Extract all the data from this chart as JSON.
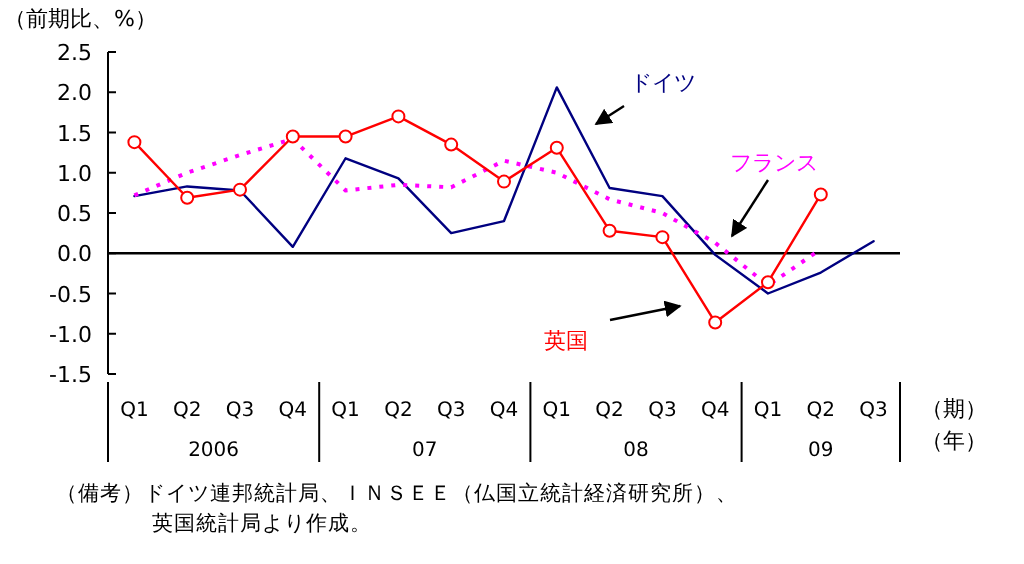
{
  "chart_data": {
    "type": "line",
    "ylabel": "（前期比、%）",
    "xlabel": "（期）（年）",
    "categories": [
      "Q1",
      "Q2",
      "Q3",
      "Q4",
      "Q1",
      "Q2",
      "Q3",
      "Q4",
      "Q1",
      "Q2",
      "Q3",
      "Q4",
      "Q1",
      "Q2",
      "Q3"
    ],
    "ylim": [
      -1.5,
      2.5
    ],
    "yticks": [
      {
        "value": 2.5,
        "label": "2.5"
      },
      {
        "value": 2.0,
        "label": "2.0"
      },
      {
        "value": 1.5,
        "label": "1.5"
      },
      {
        "value": 1.0,
        "label": "1.0"
      },
      {
        "value": 0.5,
        "label": "0.5"
      },
      {
        "value": 0,
        "label": "0.0"
      },
      {
        "value": -0.5,
        "label": "-0.5"
      },
      {
        "value": -1.0,
        "label": "-1.0"
      },
      {
        "value": -1.5,
        "label": "-1.5"
      }
    ],
    "ref_lines": [
      {
        "axis": "y",
        "value": 0,
        "color": "#000000"
      }
    ],
    "grid": false,
    "legend": false,
    "series": [
      {
        "name": "ドイツ",
        "color": "#000080",
        "marker": "none",
        "line_style": "solid",
        "values": [
          0.71,
          0.83,
          0.78,
          0.08,
          1.18,
          0.93,
          0.25,
          0.4,
          2.06,
          0.81,
          0.71,
          -0.02,
          -0.5,
          -0.24,
          0.15
        ]
      },
      {
        "name": "フランス",
        "color": "#ff00ff",
        "marker": "none",
        "line_style": "dotted",
        "values": [
          0.72,
          1.0,
          1.22,
          1.42,
          0.78,
          0.85,
          0.82,
          1.15,
          1.0,
          0.67,
          0.5,
          0.13,
          -0.4,
          0.05,
          null
        ]
      },
      {
        "name": "英国",
        "color": "#ff0000",
        "marker": "circle",
        "line_style": "solid",
        "values": [
          1.38,
          0.69,
          0.79,
          1.45,
          1.45,
          1.7,
          1.35,
          0.89,
          1.31,
          0.28,
          0.2,
          -0.86,
          -0.36,
          0.73,
          null
        ]
      }
    ],
    "annotations": [
      "2006",
      "07",
      "08",
      "09",
      "（備考）ドイツ連邦統計局、ＩＮＳＥＥ（仏国立統計経済研究所）、英国統計局より作成。"
    ]
  }
}
